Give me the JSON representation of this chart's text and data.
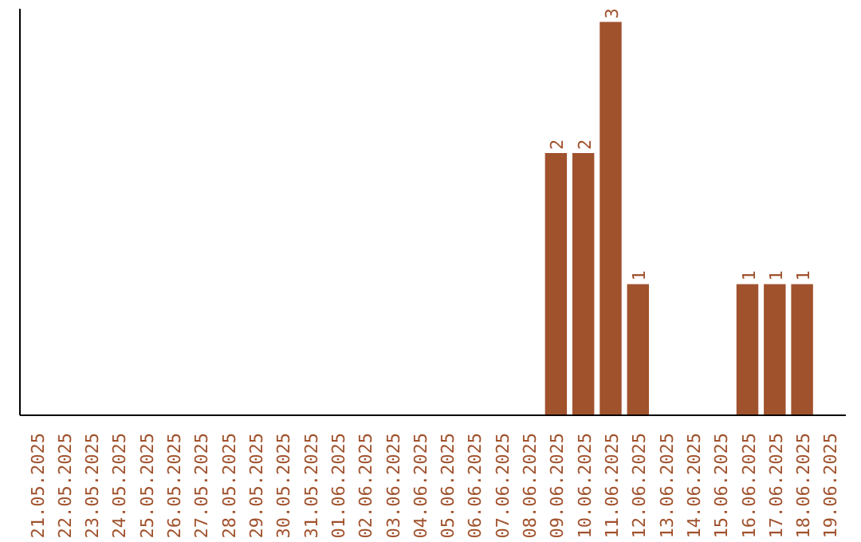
{
  "chart_data": {
    "type": "bar",
    "categories": [
      "21.05.2025",
      "22.05.2025",
      "23.05.2025",
      "24.05.2025",
      "25.05.2025",
      "26.05.2025",
      "27.05.2025",
      "28.05.2025",
      "29.05.2025",
      "30.05.2025",
      "31.05.2025",
      "01.06.2025",
      "02.06.2025",
      "03.06.2025",
      "04.06.2025",
      "05.06.2025",
      "06.06.2025",
      "07.06.2025",
      "08.06.2025",
      "09.06.2025",
      "10.06.2025",
      "11.06.2025",
      "12.06.2025",
      "13.06.2025",
      "14.06.2025",
      "15.06.2025",
      "16.06.2025",
      "17.06.2025",
      "18.06.2025",
      "19.06.2025"
    ],
    "values": [
      null,
      null,
      null,
      null,
      null,
      null,
      null,
      null,
      null,
      null,
      null,
      null,
      null,
      null,
      null,
      null,
      null,
      null,
      null,
      2,
      2,
      3,
      1,
      null,
      null,
      null,
      1,
      1,
      1,
      null
    ],
    "value_labels": [
      null,
      null,
      null,
      null,
      null,
      null,
      null,
      null,
      null,
      null,
      null,
      null,
      null,
      null,
      null,
      null,
      null,
      null,
      null,
      "2",
      "2",
      "3",
      "1",
      null,
      null,
      null,
      "1",
      "1",
      "1",
      null
    ],
    "color": "#a0522d",
    "ylim": [
      0,
      3.1
    ],
    "tick_labels": "x",
    "grid": false
  }
}
